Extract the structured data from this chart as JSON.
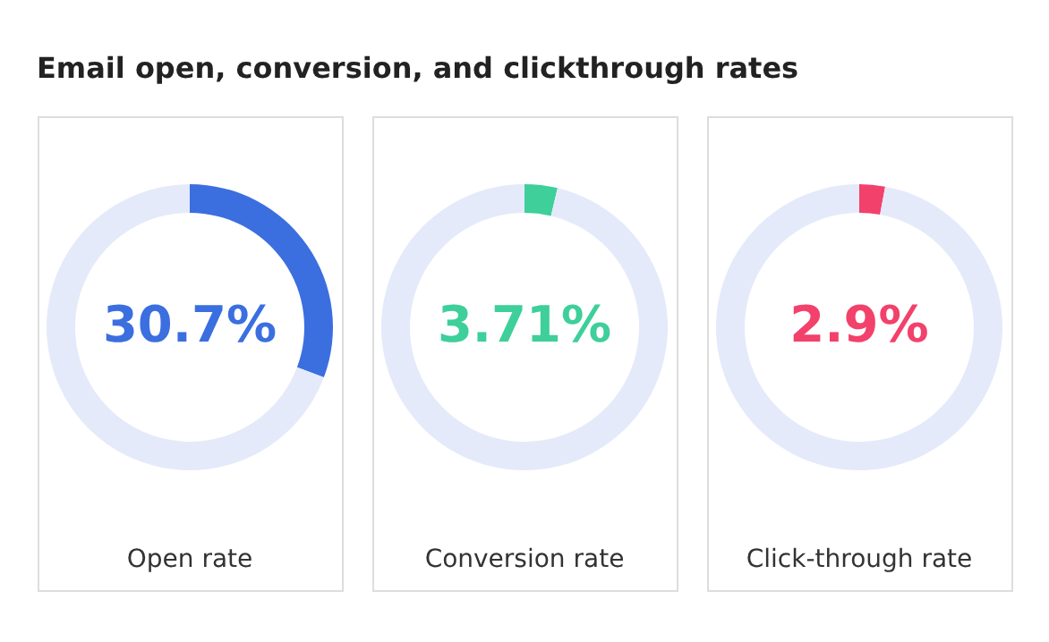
{
  "chart_data": [
    {
      "type": "donut",
      "title": "Email open, conversion, and clickthrough rates",
      "xlabel": "Open rate",
      "categories": [
        null,
        null
      ],
      "values": [
        30.7,
        69.3
      ],
      "colors": [
        "#3b6fe0",
        "#e4eafa"
      ],
      "value_labels": [
        "30.7%",
        null
      ]
    },
    {
      "type": "donut",
      "xlabel": "Conversion rate",
      "categories": [
        null,
        null
      ],
      "values": [
        3.71,
        96.29
      ],
      "colors": [
        "#3ecf9a",
        "#e4eafa"
      ],
      "value_labels": [
        "3.71%",
        null
      ]
    },
    {
      "type": "donut",
      "xlabel": "Click-through rate",
      "categories": [
        null,
        null
      ],
      "values": [
        2.9,
        97.1
      ],
      "colors": [
        "#f2416b",
        "#e4eafa"
      ],
      "value_labels": [
        "2.9%",
        null
      ]
    }
  ]
}
